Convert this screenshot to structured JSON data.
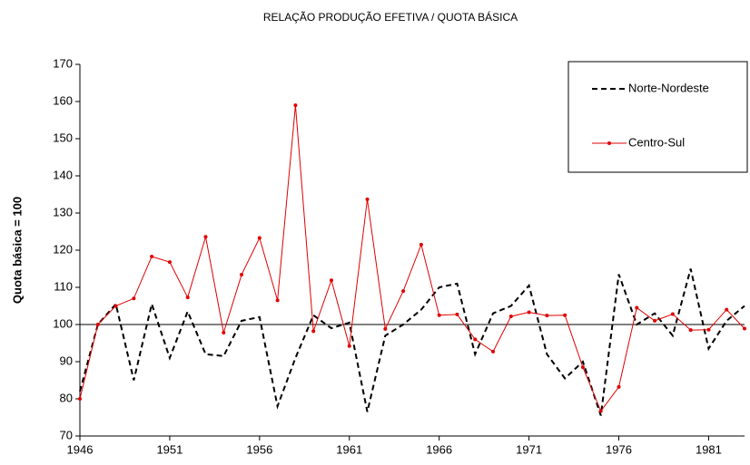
{
  "chart_data": {
    "type": "line",
    "title": "RELAÇÃO PRODUÇÃO EFETIVA / QUOTA BÁSICA",
    "y_label": "Quota básica = 100",
    "x": [
      1946,
      1947,
      1948,
      1949,
      1950,
      1951,
      1952,
      1953,
      1954,
      1955,
      1956,
      1957,
      1958,
      1959,
      1960,
      1961,
      1962,
      1963,
      1964,
      1965,
      1966,
      1967,
      1968,
      1969,
      1970,
      1971,
      1972,
      1973,
      1974,
      1975,
      1976,
      1977,
      1978,
      1979,
      1980,
      1981,
      1982,
      1983
    ],
    "series": [
      {
        "name": "Norte-Nordeste",
        "color": "#000000",
        "dashed": true,
        "values": [
          82,
          100,
          105.5,
          85,
          105.5,
          91,
          103.5,
          92,
          91.5,
          101,
          102,
          78,
          91,
          102.5,
          99,
          100.5,
          76.5,
          97,
          100,
          104,
          110,
          111,
          92,
          103,
          105,
          110.5,
          92,
          85.5,
          90,
          75.5,
          113.5,
          100,
          103,
          97,
          115,
          93.5,
          101,
          105
        ]
      },
      {
        "name": "Centro-Sul",
        "color": "#e00000",
        "dashed": false,
        "values": [
          80,
          100,
          105,
          107,
          118.3,
          116.8,
          107.3,
          123.6,
          97.8,
          113.4,
          123.3,
          106.5,
          159,
          98.2,
          111.9,
          94.2,
          133.7,
          98.8,
          109,
          121.5,
          102.5,
          102.7,
          96,
          92.7,
          102.2,
          103.3,
          102.4,
          102.5,
          88.5,
          76.7,
          83.2,
          104.5,
          101,
          102.8,
          98.5,
          98.6,
          104,
          98.9
        ]
      }
    ],
    "reference_line": 100,
    "xlim": [
      1946,
      1983
    ],
    "xticks": [
      1946,
      1951,
      1956,
      1961,
      1966,
      1971,
      1976,
      1981
    ],
    "ylim": [
      70,
      170
    ],
    "yticks": [
      70,
      80,
      90,
      100,
      110,
      120,
      130,
      140,
      150,
      160,
      170
    ],
    "legend": "top-right"
  }
}
